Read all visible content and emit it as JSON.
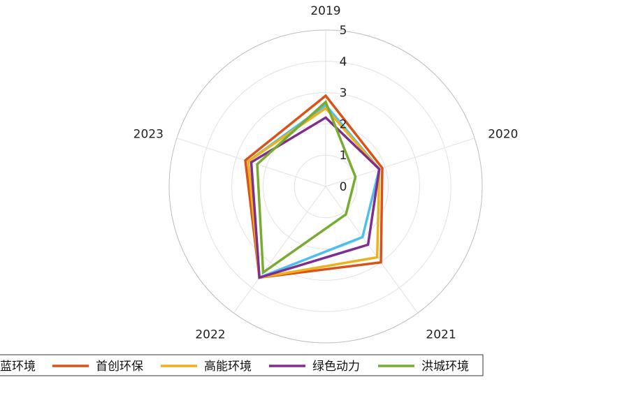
{
  "chart_data": {
    "type": "radar",
    "categories": [
      "2019",
      "2020",
      "2021",
      "2022",
      "2023"
    ],
    "r_ticks": [
      0,
      1,
      2,
      3,
      4,
      5
    ],
    "r_range": [
      0,
      5
    ],
    "grid": true,
    "legend_position": "bottom",
    "series": [
      {
        "name": "碧水源蓝环境",
        "legend_visible_text": "蓝环境",
        "color": "#4DBEEE",
        "values": [
          2.6,
          1.8,
          2.0,
          3.6,
          2.6
        ]
      },
      {
        "name": "首创环保",
        "color": "#D95319",
        "values": [
          2.9,
          1.9,
          3.0,
          3.6,
          2.7
        ]
      },
      {
        "name": "高能环境",
        "color": "#EDB120",
        "values": [
          2.5,
          1.8,
          2.8,
          3.6,
          2.6
        ]
      },
      {
        "name": "绿色动力",
        "color": "#7E2F8E",
        "values": [
          2.2,
          1.8,
          2.3,
          3.6,
          2.5
        ]
      },
      {
        "name": "洪城环境",
        "color": "#77AC30",
        "values": [
          2.7,
          1.0,
          1.1,
          3.4,
          2.3
        ]
      }
    ]
  }
}
